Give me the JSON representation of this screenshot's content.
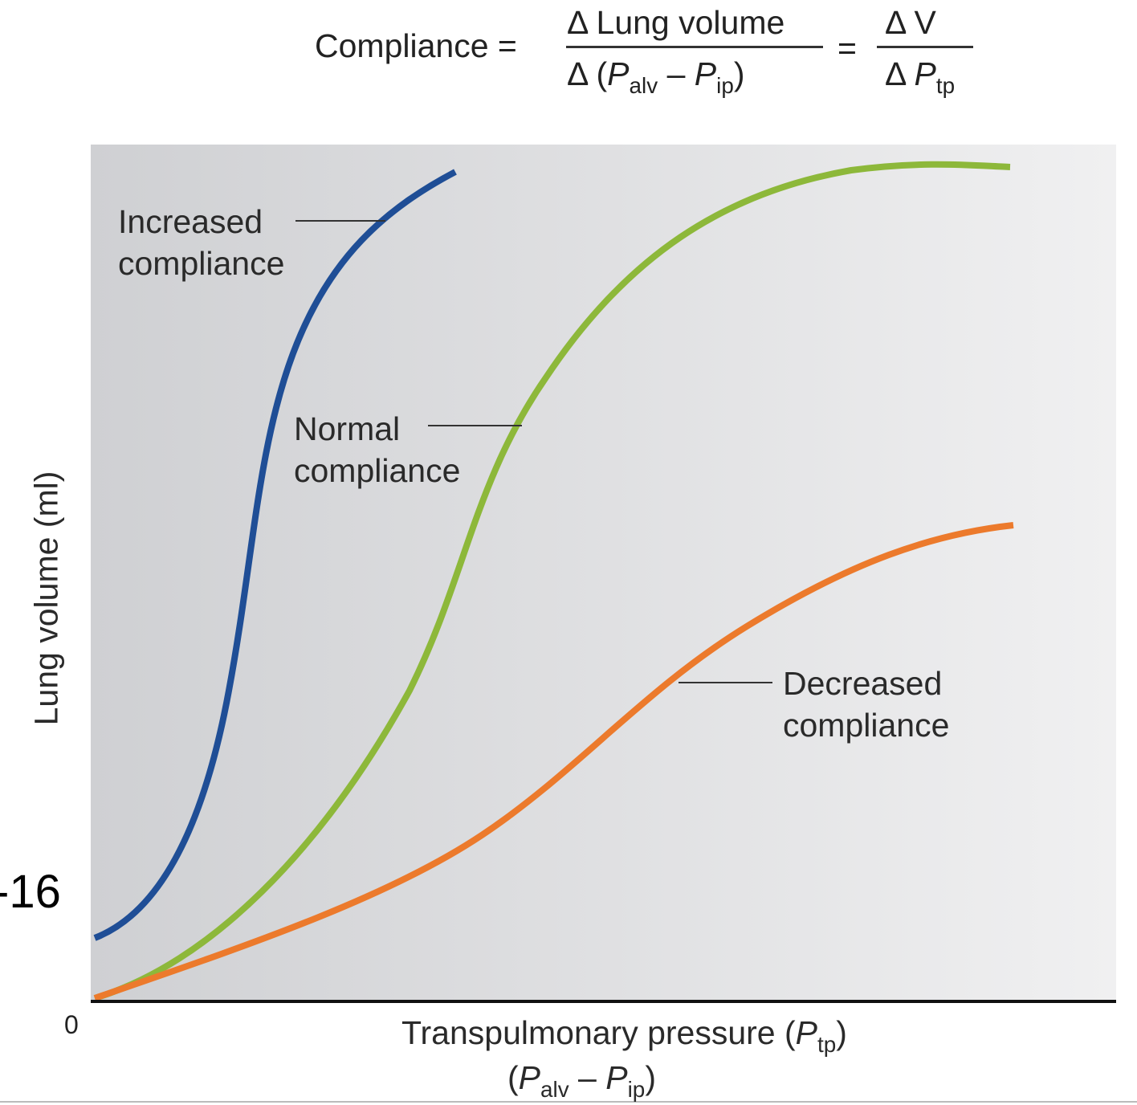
{
  "formula": {
    "lhs": "Compliance =",
    "num1": "Δ Lung volume",
    "den1_prefix": "Δ (",
    "den1_p1": "P",
    "den1_sub1": "alv",
    "den1_minus": " – ",
    "den1_p2": "P",
    "den1_sub2": "ip",
    "den1_suffix": ")",
    "eq": "=",
    "num2": "Δ V",
    "den2_prefix": "Δ ",
    "den2_p": "P",
    "den2_sub": "tp"
  },
  "axes": {
    "ylabel": "Lung volume (ml)",
    "xlabel_main": "Transpulmonary pressure (",
    "xlabel_p": "P",
    "xlabel_sub": "tp",
    "xlabel_close": ")",
    "xlabel2_open": "(",
    "xlabel2_p1": "P",
    "xlabel2_sub1": "alv",
    "xlabel2_minus": " – ",
    "xlabel2_p2": "P",
    "xlabel2_sub2": "ip",
    "xlabel2_close": ")",
    "origin": "0"
  },
  "side_label": "-16",
  "curves": [
    {
      "label_line1": "Increased",
      "label_line2": "compliance",
      "color": "#1f4e96"
    },
    {
      "label_line1": "Normal",
      "label_line2": "compliance",
      "color": "#8db83a"
    },
    {
      "label_line1": "Decreased",
      "label_line2": "compliance",
      "color": "#ec7a2c"
    }
  ],
  "colors": {
    "plot_bg_left": "#cfd0d3",
    "plot_bg_right": "#f0f0f1",
    "axis": "#111111"
  }
}
